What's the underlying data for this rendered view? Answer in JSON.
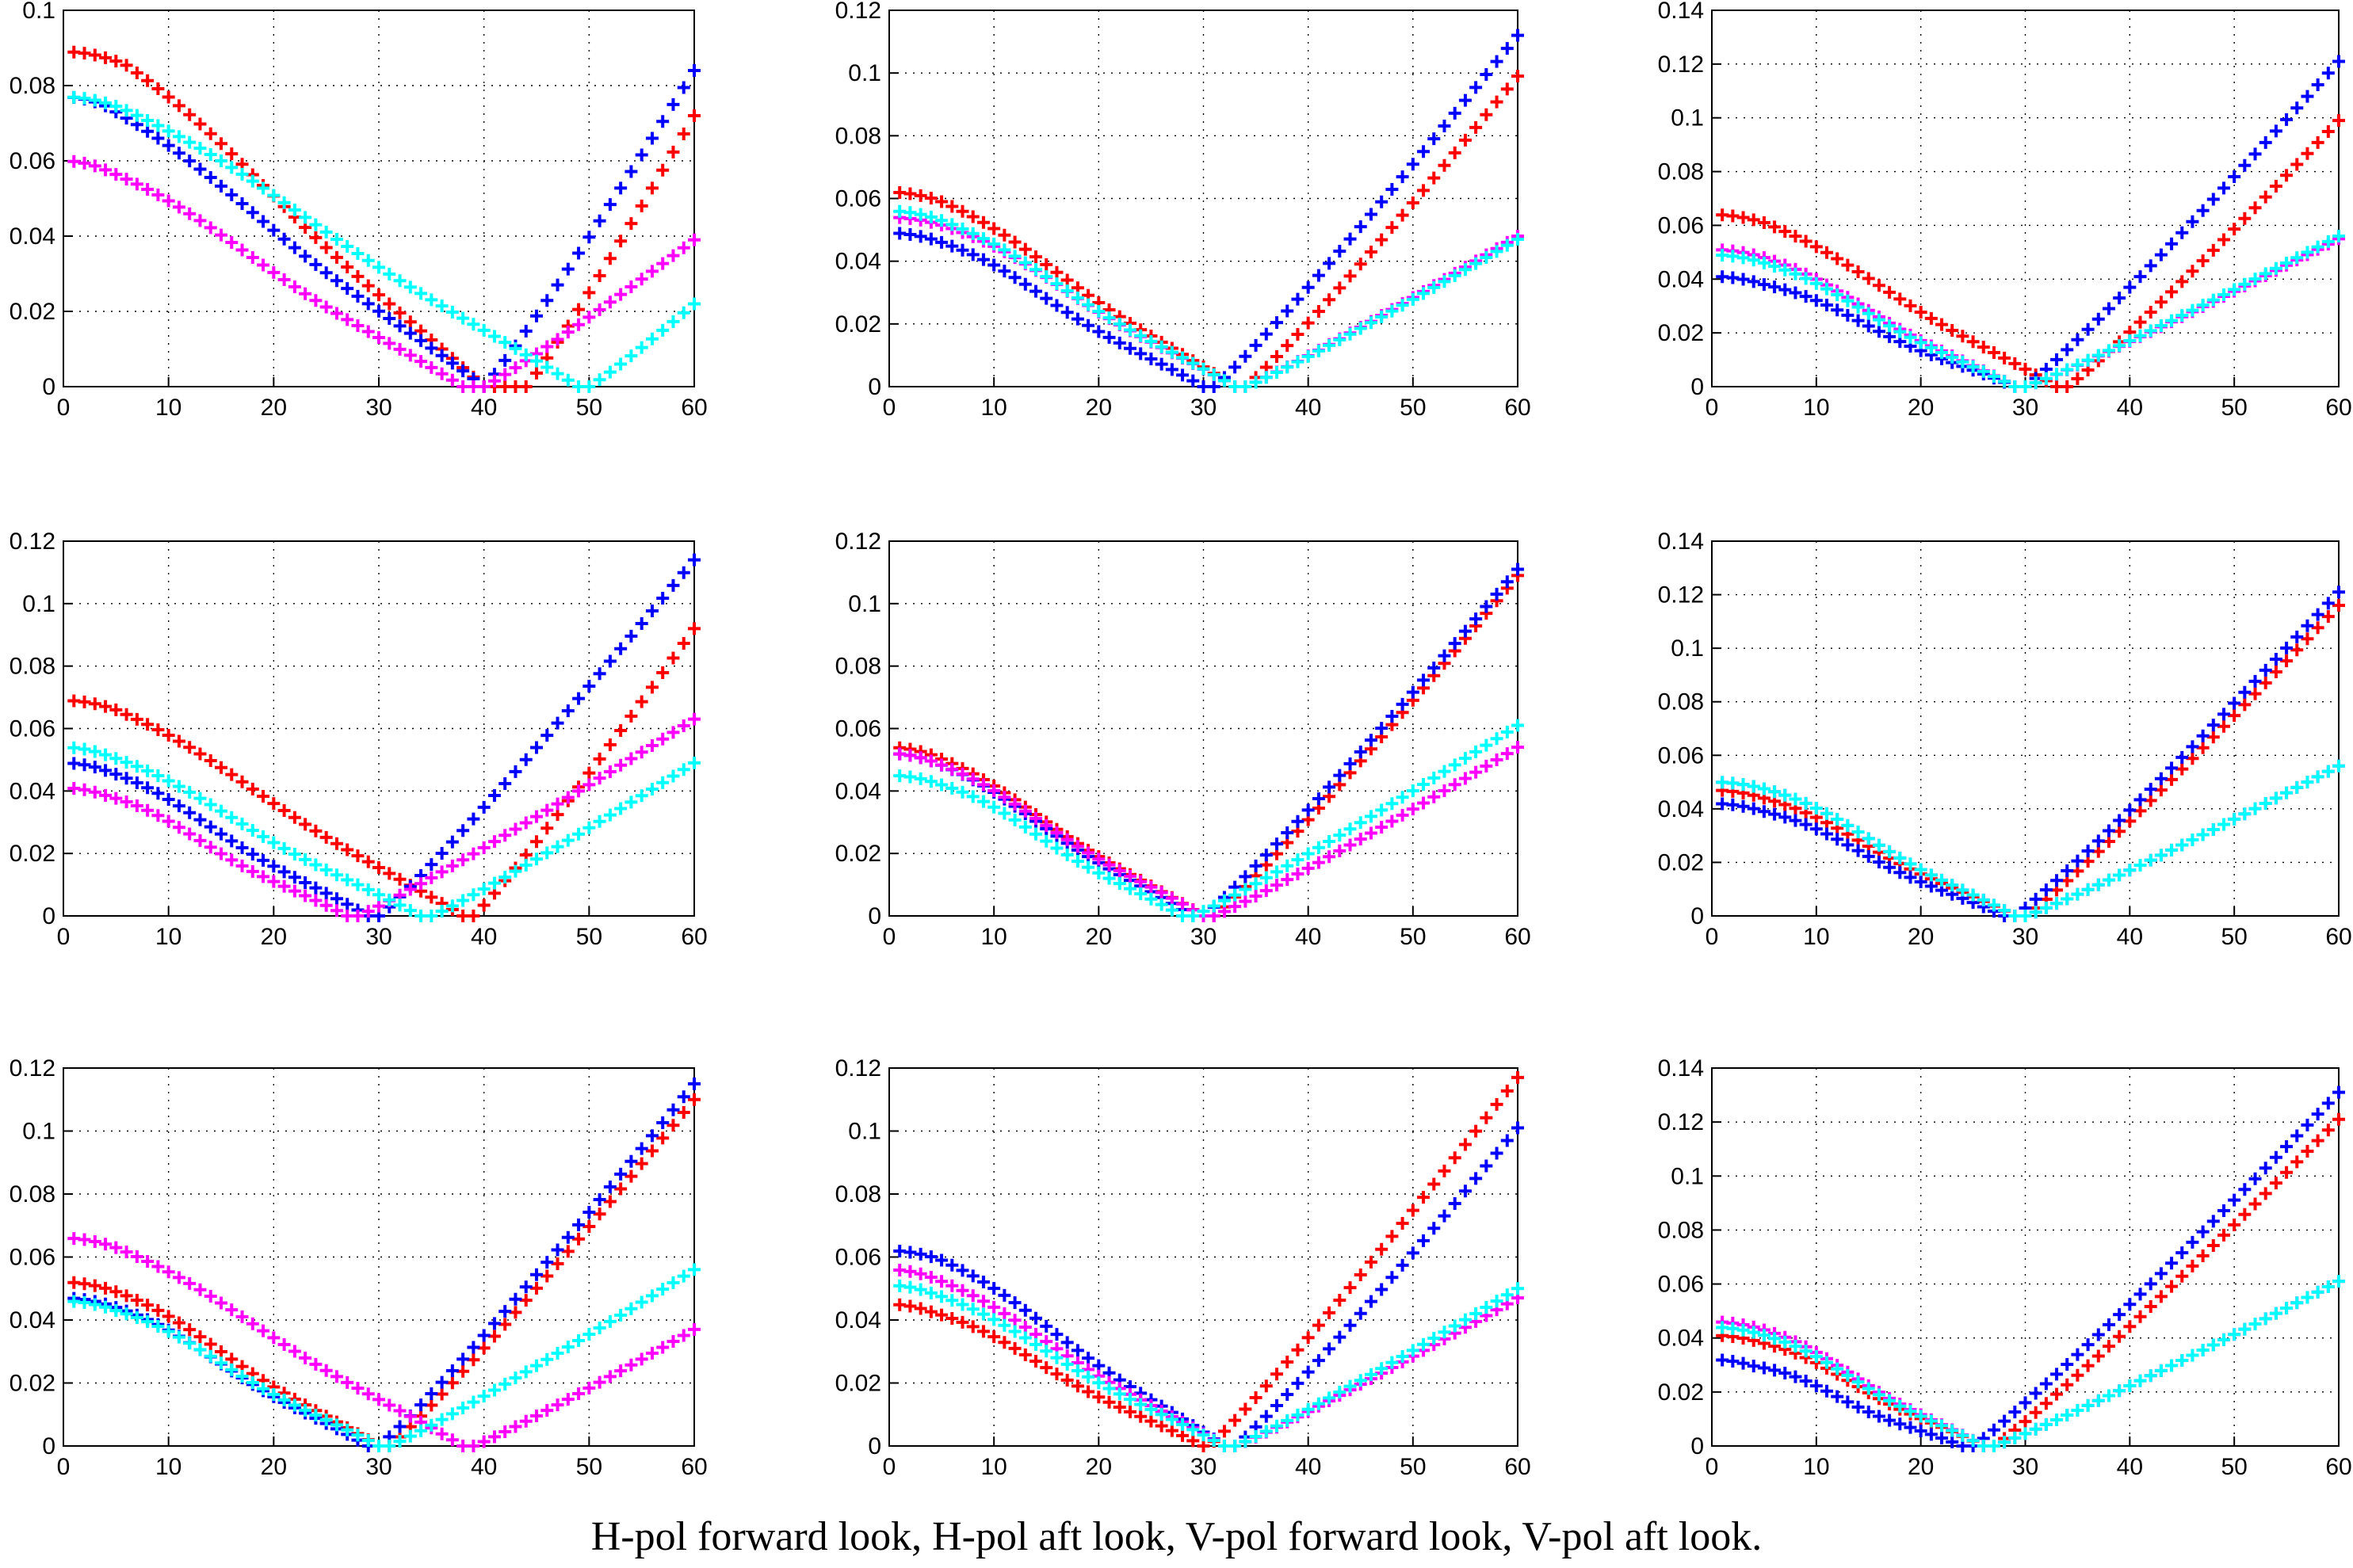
{
  "caption": "H-pol forward look, H-pol aft look, V-pol forward look, V-pol aft look.",
  "colors": {
    "red": "#ff0000",
    "blue": "#0000ff",
    "magenta": "#ff00ff",
    "cyan": "#00ffff"
  },
  "chart_data": [
    {
      "type": "scatter",
      "row": 1,
      "col": 1,
      "xlim": [
        0,
        60
      ],
      "xticks": [
        0,
        10,
        20,
        30,
        40,
        50,
        60
      ],
      "ylim": [
        0,
        0.1
      ],
      "yticks": [
        0,
        0.02,
        0.04,
        0.06,
        0.08,
        0.1
      ],
      "yticklabels": [
        "0",
        "0.02",
        "0.04",
        "0.06",
        "0.08",
        "0.1"
      ],
      "grid": true,
      "series": [
        {
          "name": "red",
          "color": "#ff0000",
          "x_min": 40,
          "x_max": 44,
          "v_left": 0.089,
          "v_min": 0,
          "v_right": 0.072,
          "flat": [
            0,
            6
          ]
        },
        {
          "name": "blue",
          "color": "#0000ff",
          "x_min": 40,
          "x_max": 39.5,
          "v_left": 0.077,
          "v_min": 0,
          "v_right": 0.084,
          "flat": [
            0,
            4
          ]
        },
        {
          "name": "magenta",
          "color": "#ff00ff",
          "x_min": 38,
          "x_max": 40,
          "v_left": 0.06,
          "v_min": 0,
          "v_right": 0.039,
          "flat": [
            0,
            4
          ]
        },
        {
          "name": "cyan",
          "color": "#00ffff",
          "x_min": 49,
          "x_max": 50,
          "v_left": 0.077,
          "v_min": 0,
          "v_right": 0.022,
          "flat": [
            0,
            6
          ]
        }
      ]
    },
    {
      "type": "scatter",
      "row": 1,
      "col": 2,
      "xlim": [
        0,
        60
      ],
      "xticks": [
        0,
        10,
        20,
        30,
        40,
        50,
        60
      ],
      "ylim": [
        0,
        0.12
      ],
      "yticks": [
        0,
        0.02,
        0.04,
        0.06,
        0.08,
        0.1,
        0.12
      ],
      "yticklabels": [
        "0",
        "0.02",
        "0.04",
        "0.06",
        "0.08",
        "0.1",
        "0.12"
      ],
      "grid": true,
      "series": [
        {
          "name": "red",
          "color": "#ff0000",
          "x_min": 33,
          "x_max": 34,
          "v_left": 0.062,
          "v_min": 0,
          "v_right": 0.099,
          "flat": [
            0,
            5
          ]
        },
        {
          "name": "blue",
          "color": "#0000ff",
          "x_min": 30,
          "x_max": 31,
          "v_left": 0.049,
          "v_min": 0,
          "v_right": 0.112,
          "flat": [
            0,
            5
          ]
        },
        {
          "name": "magenta",
          "color": "#ff00ff",
          "x_min": 33,
          "x_max": 34,
          "v_left": 0.054,
          "v_min": 0,
          "v_right": 0.048,
          "flat": [
            0,
            6
          ]
        },
        {
          "name": "cyan",
          "color": "#00ffff",
          "x_min": 33,
          "x_max": 34,
          "v_left": 0.056,
          "v_min": 0,
          "v_right": 0.047,
          "flat": [
            0,
            5
          ]
        }
      ]
    },
    {
      "type": "scatter",
      "row": 1,
      "col": 3,
      "xlim": [
        0,
        60
      ],
      "xticks": [
        0,
        10,
        20,
        30,
        40,
        50,
        60
      ],
      "ylim": [
        0,
        0.14
      ],
      "yticks": [
        0,
        0.02,
        0.04,
        0.06,
        0.08,
        0.1,
        0.12,
        0.14
      ],
      "yticklabels": [
        "0",
        "0.02",
        "0.04",
        "0.06",
        "0.08",
        "0.1",
        "0.12",
        "0.14"
      ],
      "grid": true,
      "series": [
        {
          "name": "red",
          "color": "#ff0000",
          "x_min": 33,
          "x_max": 34,
          "v_left": 0.064,
          "v_min": 0,
          "v_right": 0.099,
          "flat": [
            0,
            5
          ]
        },
        {
          "name": "blue",
          "color": "#0000ff",
          "x_min": 29,
          "x_max": 30,
          "v_left": 0.041,
          "v_min": 0,
          "v_right": 0.121,
          "flat": [
            0,
            5
          ]
        },
        {
          "name": "magenta",
          "color": "#ff00ff",
          "x_min": 29,
          "x_max": 30,
          "v_left": 0.051,
          "v_min": 0,
          "v_right": 0.055,
          "flat": [
            0,
            5
          ]
        },
        {
          "name": "cyan",
          "color": "#00ffff",
          "x_min": 29,
          "x_max": 30,
          "v_left": 0.049,
          "v_min": 0,
          "v_right": 0.056,
          "flat": [
            0,
            5
          ]
        }
      ]
    },
    {
      "type": "scatter",
      "row": 2,
      "col": 1,
      "xlim": [
        0,
        60
      ],
      "xticks": [
        0,
        10,
        20,
        30,
        40,
        50,
        60
      ],
      "ylim": [
        0,
        0.12
      ],
      "yticks": [
        0,
        0.02,
        0.04,
        0.06,
        0.08,
        0.1,
        0.12
      ],
      "yticklabels": [
        "0",
        "0.02",
        "0.04",
        "0.06",
        "0.08",
        "0.1",
        "0.12"
      ],
      "grid": true,
      "series": [
        {
          "name": "red",
          "color": "#ff0000",
          "x_min": 38,
          "x_max": 39,
          "v_left": 0.069,
          "v_min": 0,
          "v_right": 0.092,
          "flat": [
            0,
            5
          ]
        },
        {
          "name": "blue",
          "color": "#0000ff",
          "x_min": 29,
          "x_max": 30,
          "v_left": 0.049,
          "v_min": 0,
          "v_right": 0.114,
          "flat": [
            0,
            4
          ]
        },
        {
          "name": "magenta",
          "color": "#ff00ff",
          "x_min": 27,
          "x_max": 28,
          "v_left": 0.041,
          "v_min": 0,
          "v_right": 0.063,
          "flat": [
            0,
            4
          ]
        },
        {
          "name": "cyan",
          "color": "#00ffff",
          "x_min": 34,
          "x_max": 35,
          "v_left": 0.054,
          "v_min": 0,
          "v_right": 0.049,
          "flat": [
            0,
            4
          ]
        }
      ]
    },
    {
      "type": "scatter",
      "row": 2,
      "col": 2,
      "xlim": [
        0,
        60
      ],
      "xticks": [
        0,
        10,
        20,
        30,
        40,
        50,
        60
      ],
      "ylim": [
        0,
        0.12
      ],
      "yticks": [
        0,
        0.02,
        0.04,
        0.06,
        0.08,
        0.1,
        0.12
      ],
      "yticklabels": [
        "0",
        "0.02",
        "0.04",
        "0.06",
        "0.08",
        "0.1",
        "0.12"
      ],
      "grid": true,
      "series": [
        {
          "name": "red",
          "color": "#ff0000",
          "x_min": 30,
          "x_max": 31,
          "v_left": 0.054,
          "v_min": 0,
          "v_right": 0.109,
          "flat": [
            0,
            4
          ]
        },
        {
          "name": "blue",
          "color": "#0000ff",
          "x_min": 29,
          "x_max": 30,
          "v_left": 0.052,
          "v_min": 0,
          "v_right": 0.111,
          "flat": [
            0,
            4
          ]
        },
        {
          "name": "magenta",
          "color": "#ff00ff",
          "x_min": 30,
          "x_max": 31,
          "v_left": 0.052,
          "v_min": 0,
          "v_right": 0.054,
          "flat": [
            0,
            4
          ]
        },
        {
          "name": "cyan",
          "color": "#00ffff",
          "x_min": 28,
          "x_max": 29,
          "v_left": 0.045,
          "v_min": 0,
          "v_right": 0.061,
          "flat": [
            0,
            5
          ]
        }
      ]
    },
    {
      "type": "scatter",
      "row": 2,
      "col": 3,
      "xlim": [
        0,
        60
      ],
      "xticks": [
        0,
        10,
        20,
        30,
        40,
        50,
        60
      ],
      "ylim": [
        0,
        0.14
      ],
      "yticks": [
        0,
        0.02,
        0.04,
        0.06,
        0.08,
        0.1,
        0.12,
        0.14
      ],
      "yticklabels": [
        "0",
        "0.02",
        "0.04",
        "0.06",
        "0.08",
        "0.1",
        "0.12",
        "0.14"
      ],
      "grid": true,
      "series": [
        {
          "name": "red",
          "color": "#ff0000",
          "x_min": 29,
          "x_max": 30,
          "v_left": 0.047,
          "v_min": 0,
          "v_right": 0.116,
          "flat": [
            0,
            5
          ]
        },
        {
          "name": "blue",
          "color": "#0000ff",
          "x_min": 28,
          "x_max": 29,
          "v_left": 0.042,
          "v_min": 0,
          "v_right": 0.121,
          "flat": [
            0,
            5
          ]
        },
        {
          "name": "magenta",
          "color": "#ff00ff",
          "x_min": 29,
          "x_max": 30,
          "v_left": 0.05,
          "v_min": 0,
          "v_right": 0.056,
          "flat": [
            0,
            6
          ]
        },
        {
          "name": "cyan",
          "color": "#00ffff",
          "x_min": 29,
          "x_max": 30,
          "v_left": 0.05,
          "v_min": 0,
          "v_right": 0.056,
          "flat": [
            0,
            6
          ]
        }
      ]
    },
    {
      "type": "scatter",
      "row": 3,
      "col": 1,
      "xlim": [
        0,
        60
      ],
      "xticks": [
        0,
        10,
        20,
        30,
        40,
        50,
        60
      ],
      "ylim": [
        0,
        0.12
      ],
      "yticks": [
        0,
        0.02,
        0.04,
        0.06,
        0.08,
        0.1,
        0.12
      ],
      "yticklabels": [
        "0",
        "0.02",
        "0.04",
        "0.06",
        "0.08",
        "0.1",
        "0.12"
      ],
      "grid": true,
      "series": [
        {
          "name": "red",
          "color": "#ff0000",
          "x_min": 30,
          "x_max": 31,
          "v_left": 0.052,
          "v_min": 0,
          "v_right": 0.11,
          "flat": [
            0,
            5
          ]
        },
        {
          "name": "blue",
          "color": "#0000ff",
          "x_min": 29,
          "x_max": 30,
          "v_left": 0.047,
          "v_min": 0,
          "v_right": 0.115,
          "flat": [
            0,
            5
          ]
        },
        {
          "name": "magenta",
          "color": "#ff00ff",
          "x_min": 38,
          "x_max": 39,
          "v_left": 0.066,
          "v_min": 0,
          "v_right": 0.037,
          "flat": [
            0,
            5
          ]
        },
        {
          "name": "cyan",
          "color": "#00ffff",
          "x_min": 30,
          "x_max": 31,
          "v_left": 0.046,
          "v_min": 0,
          "v_right": 0.056,
          "flat": [
            0,
            5
          ]
        }
      ]
    },
    {
      "type": "scatter",
      "row": 3,
      "col": 2,
      "xlim": [
        0,
        60
      ],
      "xticks": [
        0,
        10,
        20,
        30,
        40,
        50,
        60
      ],
      "ylim": [
        0,
        0.12
      ],
      "yticks": [
        0,
        0.02,
        0.04,
        0.06,
        0.08,
        0.1,
        0.12
      ],
      "yticklabels": [
        "0",
        "0.02",
        "0.04",
        "0.06",
        "0.08",
        "0.1",
        "0.12"
      ],
      "grid": true,
      "series": [
        {
          "name": "red",
          "color": "#ff0000",
          "x_min": 30,
          "x_max": 30.5,
          "v_left": 0.045,
          "v_min": 0,
          "v_right": 0.117,
          "flat": [
            0,
            4
          ]
        },
        {
          "name": "blue",
          "color": "#0000ff",
          "x_min": 32,
          "x_max": 33,
          "v_left": 0.062,
          "v_min": 0,
          "v_right": 0.101,
          "flat": [
            0,
            5
          ]
        },
        {
          "name": "magenta",
          "color": "#ff00ff",
          "x_min": 32,
          "x_max": 33,
          "v_left": 0.056,
          "v_min": 0,
          "v_right": 0.047,
          "flat": [
            0,
            4
          ]
        },
        {
          "name": "cyan",
          "color": "#00ffff",
          "x_min": 32,
          "x_max": 33,
          "v_left": 0.051,
          "v_min": 0,
          "v_right": 0.05,
          "flat": [
            0,
            4
          ]
        }
      ]
    },
    {
      "type": "scatter",
      "row": 3,
      "col": 3,
      "xlim": [
        0,
        60
      ],
      "xticks": [
        0,
        10,
        20,
        30,
        40,
        50,
        60
      ],
      "ylim": [
        0,
        0.14
      ],
      "yticks": [
        0,
        0.02,
        0.04,
        0.06,
        0.08,
        0.1,
        0.12,
        0.14
      ],
      "yticklabels": [
        "0",
        "0.02",
        "0.04",
        "0.06",
        "0.08",
        "0.1",
        "0.12",
        "0.14"
      ],
      "grid": true,
      "series": [
        {
          "name": "red",
          "color": "#ff0000",
          "x_min": 26,
          "x_max": 27,
          "v_left": 0.041,
          "v_min": 0,
          "v_right": 0.121,
          "flat": [
            0,
            5
          ]
        },
        {
          "name": "blue",
          "color": "#0000ff",
          "x_min": 24,
          "x_max": 25,
          "v_left": 0.032,
          "v_min": 0,
          "v_right": 0.131,
          "flat": [
            0,
            4
          ]
        },
        {
          "name": "magenta",
          "color": "#ff00ff",
          "x_min": 26,
          "x_max": 27,
          "v_left": 0.046,
          "v_min": 0,
          "v_right": 0.061,
          "flat": [
            0,
            5
          ]
        },
        {
          "name": "cyan",
          "color": "#00ffff",
          "x_min": 26,
          "x_max": 27,
          "v_left": 0.044,
          "v_min": 0,
          "v_right": 0.061,
          "flat": [
            0,
            5
          ]
        }
      ]
    }
  ]
}
